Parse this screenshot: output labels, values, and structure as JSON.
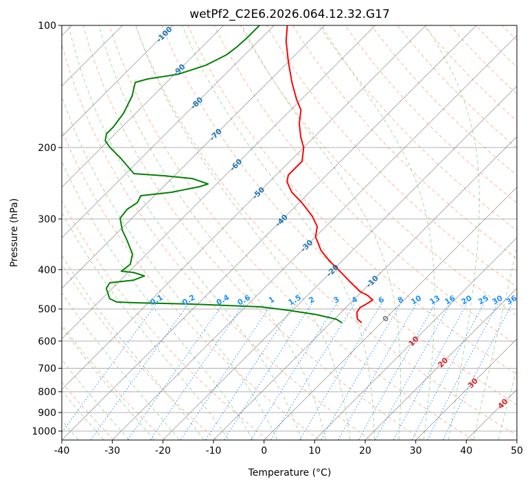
{
  "chart_data": {
    "type": "line",
    "title": "wetPf2_C2E6.2026.064.12.32.G17",
    "xlabel": "Temperature (°C)",
    "ylabel": "Pressure (hPa)",
    "xlim": [
      -40,
      50
    ],
    "ylim": [
      1050,
      100
    ],
    "x_ticks": [
      -40,
      -30,
      -20,
      -10,
      0,
      10,
      20,
      30,
      40,
      50
    ],
    "y_ticks": [
      100,
      200,
      300,
      400,
      500,
      600,
      700,
      800,
      900,
      1000
    ],
    "grid": true,
    "colors": {
      "temperature": "#ff0000",
      "dewpoint": "#008000",
      "isotherm": "#808080",
      "dry_adiabat": "#f4a582",
      "moist_adiabat": "#9fd39f",
      "mixing_ratio": "#1e90ff",
      "neg_label": "#1f77b4",
      "pos_label": "#d62728"
    },
    "series": [
      {
        "name": "Temperature",
        "p": [
          100,
          109.4,
          122.9,
          138.2,
          152.3,
          161.5,
          174.6,
          188.7,
          200,
          216.3,
          224.9,
          233.8,
          243.1,
          257.8,
          273.3,
          295.4,
          313.2,
          332,
          358.9,
          380.5,
          403.5,
          427.8,
          453.5,
          462.4,
          475.2,
          484.6,
          496,
          509.7,
          530,
          540.5
        ],
        "t": [
          -77.4,
          -74.5,
          -70,
          -65.2,
          -60.9,
          -58,
          -55.6,
          -52.6,
          -50,
          -47.6,
          -47.6,
          -47.6,
          -46.5,
          -43.5,
          -39.5,
          -34.7,
          -31.7,
          -30,
          -26.2,
          -22.5,
          -18.4,
          -14.4,
          -10.3,
          -8.2,
          -6.2,
          -6.6,
          -7.2,
          -6.9,
          -5.4,
          -3.9
        ]
      },
      {
        "name": "Dewpoint",
        "p": [
          100,
          107.3,
          112.8,
          118.2,
          125.3,
          131.9,
          135.5,
          138.2,
          149.4,
          164.7,
          178,
          185.1,
          192.4,
          200,
          212.1,
          232,
          234.8,
          238.5,
          246,
          249.8,
          257.8,
          262.9,
          273.3,
          284.1,
          298.9,
          319.3,
          338.6,
          366,
          388,
          403.5,
          406.6,
          414.6,
          424.5,
          431.1,
          444.6,
          471.5,
          480.8,
          482.7,
          486.4,
          494,
          503.8,
          515.8,
          530,
          540.5
        ],
        "t": [
          -82.9,
          -82.9,
          -83.1,
          -83.6,
          -85.6,
          -89.3,
          -94.4,
          -96.2,
          -94.1,
          -92.4,
          -91.7,
          -91.7,
          -90.6,
          -88.3,
          -84.2,
          -78.4,
          -71.9,
          -65.9,
          -61.7,
          -62.9,
          -67.3,
          -72.7,
          -72,
          -72.7,
          -72.3,
          -69.6,
          -66.6,
          -62.8,
          -61.2,
          -61.6,
          -58.9,
          -56.1,
          -57.4,
          -61.6,
          -61.2,
          -58.5,
          -56.4,
          -52.2,
          -41.1,
          -27,
          -20.9,
          -14.6,
          -9.6,
          -7.8
        ]
      }
    ],
    "isotherm_labels": [
      {
        "text": "-100",
        "t": -100,
        "p": 105.2
      },
      {
        "text": "-90",
        "t": -90,
        "p": 128.8
      },
      {
        "text": "-80",
        "t": -80,
        "p": 155.3
      },
      {
        "text": "-70",
        "t": -70,
        "p": 185.8
      },
      {
        "text": "-60",
        "t": -60,
        "p": 220.6
      },
      {
        "text": "-50",
        "t": -50,
        "p": 258.8
      },
      {
        "text": "-40",
        "t": -40,
        "p": 302.4
      },
      {
        "text": "-30",
        "t": -30,
        "p": 349.3
      },
      {
        "text": "-20",
        "t": -20,
        "p": 401.8
      },
      {
        "text": "-10",
        "t": -10,
        "p": 466.0
      },
      {
        "text": "0",
        "t": 0,
        "p": 527.9
      },
      {
        "text": "10",
        "t": 10,
        "p": 600.2
      },
      {
        "text": "20",
        "t": 20,
        "p": 677.3
      },
      {
        "text": "30",
        "t": 30,
        "p": 761.5
      },
      {
        "text": "40",
        "t": 40,
        "p": 855.6
      }
    ],
    "mixing_ratio_labels": [
      "0.1",
      "0.2",
      "0.4",
      "0.6",
      "1",
      "1.5",
      "2",
      "3",
      "4",
      "6",
      "8",
      "10",
      "13",
      "16",
      "20",
      "25",
      "30",
      "36"
    ],
    "mixing_ratio_label_p": 481
  }
}
